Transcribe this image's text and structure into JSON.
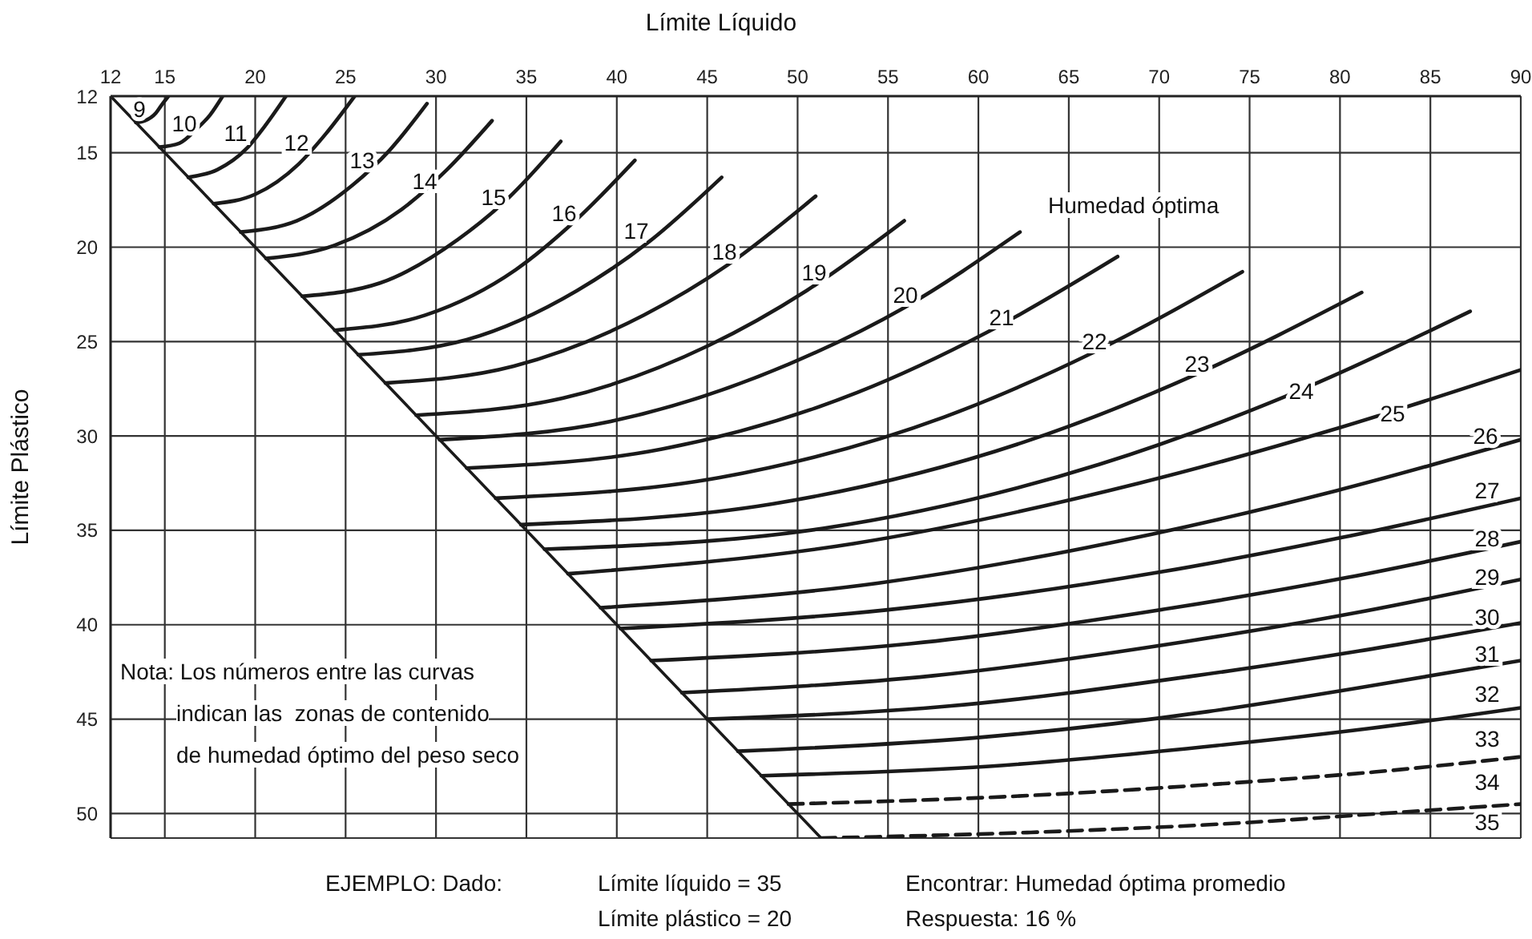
{
  "chart_data": {
    "type": "line",
    "xlabel": "Límite Líquido",
    "ylabel": "Límite Plástico",
    "xlim": [
      12,
      90
    ],
    "xticks": [
      12,
      15,
      20,
      25,
      30,
      35,
      40,
      45,
      50,
      55,
      60,
      65,
      70,
      75,
      80,
      85,
      90
    ],
    "ylim": [
      51.3,
      12
    ],
    "yticks": [
      12,
      15,
      20,
      25,
      30,
      35,
      40,
      45,
      50
    ],
    "grid": true,
    "marker": "none",
    "line_style": "solid",
    "series": [
      {
        "color": "#1a1a1a",
        "x": [
          12,
          51.3
        ],
        "values": [
          12,
          51.3
        ]
      },
      {
        "color": "#1a1a1a",
        "x": [
          13.4,
          13.9,
          14.5,
          14.8,
          15.2
        ],
        "values": [
          13.4,
          13.3,
          12.9,
          12.5,
          12
        ]
      },
      {
        "color": "#1a1a1a",
        "x": [
          14.7,
          15.8,
          16.8,
          17.5,
          18.2
        ],
        "values": [
          14.7,
          14.5,
          13.7,
          13.0,
          12
        ]
      },
      {
        "color": "#1a1a1a",
        "x": [
          16.3,
          17.9,
          19.5,
          20.6,
          21.7
        ],
        "values": [
          16.3,
          15.9,
          14.8,
          13.5,
          12
        ]
      },
      {
        "color": "#1a1a1a",
        "x": [
          17.7,
          20.0,
          22.4,
          23.9,
          25.5
        ],
        "values": [
          17.7,
          17.2,
          15.6,
          14.0,
          12
        ]
      },
      {
        "color": "#1a1a1a",
        "x": [
          19.2,
          22.3,
          25.4,
          27.4,
          29.5
        ],
        "values": [
          19.2,
          18.6,
          16.7,
          14.9,
          12.4
        ]
      },
      {
        "color": "#1a1a1a",
        "x": [
          20.6,
          24.4,
          28.1,
          30.6,
          33.1
        ],
        "values": [
          20.6,
          19.9,
          18.0,
          15.9,
          13.3
        ]
      },
      {
        "color": "#1a1a1a",
        "x": [
          22.6,
          26.9,
          31.2,
          34.0,
          36.9
        ],
        "values": [
          22.6,
          21.9,
          19.6,
          17.4,
          14.4
        ]
      },
      {
        "color": "#1a1a1a",
        "x": [
          24.4,
          29.4,
          34.4,
          37.7,
          41
        ],
        "values": [
          24.4,
          23.6,
          21.2,
          18.6,
          15.4
        ]
      },
      {
        "color": "#1a1a1a",
        "x": [
          25.7,
          31.7,
          37.8,
          41.8,
          45.8
        ],
        "values": [
          25.7,
          24.9,
          22.3,
          19.7,
          16.3
        ]
      },
      {
        "color": "#1a1a1a",
        "x": [
          27.2,
          34.3,
          41.5,
          46.2,
          51
        ],
        "values": [
          27.2,
          26.3,
          23.6,
          20.9,
          17.3
        ]
      },
      {
        "color": "#1a1a1a",
        "x": [
          28.9,
          37.0,
          45.1,
          50.5,
          55.9
        ],
        "values": [
          28.9,
          28.0,
          25.2,
          22.3,
          18.6
        ]
      },
      {
        "color": "#1a1a1a",
        "x": [
          30.2,
          39.8,
          49.5,
          55.9,
          62.3
        ],
        "values": [
          30.2,
          29.2,
          26.2,
          23.2,
          19.2
        ]
      },
      {
        "color": "#1a1a1a",
        "x": [
          31.7,
          42.5,
          53.3,
          60.5,
          67.7
        ],
        "values": [
          31.7,
          30.7,
          27.7,
          24.5,
          20.5
        ]
      },
      {
        "color": "#1a1a1a",
        "x": [
          33.3,
          45.7,
          58.1,
          66.3,
          74.6
        ],
        "values": [
          33.3,
          32.2,
          29.0,
          25.6,
          21.3
        ]
      },
      {
        "color": "#1a1a1a",
        "x": [
          34.7,
          48.6,
          62.6,
          71.9,
          81.2
        ],
        "values": [
          34.7,
          33.6,
          30.3,
          26.8,
          22.4
        ]
      },
      {
        "color": "#1a1a1a",
        "x": [
          36,
          51.4,
          66.7,
          77,
          87.2
        ],
        "values": [
          36,
          34.9,
          31.5,
          27.9,
          23.4
        ]
      },
      {
        "color": "#1a1a1a",
        "x": [
          37.3,
          53.1,
          68.9,
          79.5,
          90
        ],
        "values": [
          37.3,
          35.7,
          32.5,
          29.7,
          26.5
        ]
      },
      {
        "color": "#1a1a1a",
        "x": [
          39.1,
          54.4,
          69.6,
          79.8,
          90
        ],
        "values": [
          39.1,
          37.8,
          35.2,
          32.9,
          30.2
        ]
      },
      {
        "color": "#1a1a1a",
        "x": [
          40.2,
          55.1,
          70.1,
          80.0,
          90
        ],
        "values": [
          40.2,
          39.2,
          37.2,
          35.4,
          33.3
        ]
      },
      {
        "color": "#1a1a1a",
        "x": [
          41.9,
          56.3,
          70.8,
          80.4,
          90
        ],
        "values": [
          41.9,
          41.0,
          39.1,
          37.5,
          35.6
        ]
      },
      {
        "color": "#1a1a1a",
        "x": [
          43.6,
          57.5,
          71.4,
          80.7,
          90
        ],
        "values": [
          43.6,
          42.7,
          40.9,
          39.4,
          37.6
        ]
      },
      {
        "color": "#1a1a1a",
        "x": [
          45,
          58.5,
          72,
          81,
          90
        ],
        "values": [
          45,
          44.3,
          42.7,
          41.4,
          39.9
        ]
      },
      {
        "color": "#1a1a1a",
        "x": [
          46.7,
          59.7,
          72.7,
          81.3,
          90
        ],
        "values": [
          46.7,
          46.0,
          44.6,
          43.3,
          41.9
        ]
      },
      {
        "color": "#1a1a1a",
        "x": [
          48,
          60.6,
          73.2,
          81.6,
          90
        ],
        "values": [
          48,
          47.5,
          46.4,
          45.5,
          44.4
        ]
      },
      {
        "color": "#1a1a1a",
        "line_style": "dashed",
        "x": [
          49.5,
          61.7,
          73.8,
          81.9,
          90
        ],
        "values": [
          49.5,
          49.1,
          48.4,
          47.8,
          47.0
        ]
      },
      {
        "color": "#1a1a1a",
        "line_style": "dashed",
        "x": [
          51.3,
          62.9,
          74.5,
          82.3,
          90
        ],
        "values": [
          51.3,
          51.0,
          50.5,
          50.0,
          49.5
        ]
      }
    ],
    "annotations": [
      "Humedad óptima",
      "Nota: Los números entre las curvas\nindican las  zonas de contenido\nde humedad óptimo del peso seco",
      "EJEMPLO: Dado:",
      "Límite líquido = 35\nLímite plástico = 20",
      "Encontrar: Humedad óptima promedio\nRespuesta: 16 %",
      "9",
      "10",
      "11",
      "12",
      "13",
      "14",
      "15",
      "16",
      "17",
      "18",
      "19",
      "20",
      "21",
      "22",
      "23",
      "24",
      "25",
      "26",
      "27",
      "28",
      "29",
      "30",
      "31",
      "32",
      "33",
      "34",
      "35"
    ]
  }
}
